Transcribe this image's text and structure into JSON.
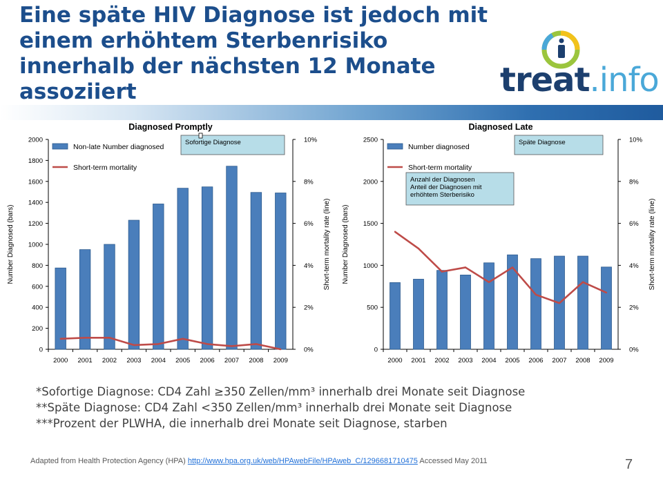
{
  "slide": {
    "title": "Eine späte HIV Diagnose ist jedoch mit einem erhöhtem Sterbenrisiko innerhalb der nächsten 12 Monate assoziiert",
    "logo": {
      "word1": "treat",
      "word2": ".info",
      "icon": "info-i-logo-icon"
    },
    "footnotes": [
      "*Sofortige Diagnose: CD4 Zahl ≥350 Zellen/mm³ innerhalb drei Monate seit Diagnose",
      "**Späte Diagnose: CD4 Zahl <350 Zellen/mm³ innerhalb drei Monate seit Diagnose",
      "***Prozent der PLWHA, die innerhalb drei Monate seit Diagnose, starben"
    ],
    "source_prefix": "Adapted from Health Protection Agency (HPA) ",
    "source_link": "http://www.hpa.org.uk/web/HPAwebFile/HPAweb_C/1296681710475",
    "source_suffix": " Accessed May 2011",
    "page_number": "7"
  },
  "colors": {
    "title": "#1c4e8c",
    "bar": "#4a7ebb",
    "bar_edge": "#2c5a8e",
    "line": "#be4b48",
    "callout_fill": "#b7dde8"
  },
  "chart_data": [
    {
      "type": "bar",
      "title": "Diagnosed Promptly",
      "categories": [
        "2000",
        "2001",
        "2002",
        "2003",
        "2004",
        "2005",
        "2006",
        "2007",
        "2008",
        "2009"
      ],
      "series": [
        {
          "name": "Non-late Number diagnosed",
          "type": "bar",
          "axis": "left",
          "values": [
            775,
            950,
            1000,
            1230,
            1385,
            1535,
            1548,
            1745,
            1495,
            1490
          ]
        },
        {
          "name": "Short-term mortality",
          "type": "line",
          "axis": "right",
          "values": [
            0.5,
            0.55,
            0.55,
            0.2,
            0.25,
            0.5,
            0.25,
            0.15,
            0.25,
            0.0
          ]
        }
      ],
      "ylabel": "Number Diagnosed (bars)",
      "ylabel_right": "Short-term mortality rate (line)",
      "ylim": [
        0,
        2000
      ],
      "yticks": [
        "0",
        "200",
        "400",
        "600",
        "800",
        "1000",
        "1200",
        "1400",
        "1600",
        "1800",
        "2000"
      ],
      "ylim_right": [
        0,
        10
      ],
      "yticks_right": [
        "0%",
        "2%",
        "4%",
        "6%",
        "8%",
        "10%"
      ],
      "grid": false,
      "legend": "top-left",
      "callouts": [
        "Sofortige Diagnose"
      ]
    },
    {
      "type": "bar",
      "title": "Diagnosed Late",
      "categories": [
        "2000",
        "2001",
        "2002",
        "2003",
        "2004",
        "2005",
        "2006",
        "2007",
        "2008",
        "2009"
      ],
      "series": [
        {
          "name": "Number diagnosed",
          "type": "bar",
          "axis": "left",
          "values": [
            795,
            835,
            940,
            885,
            1030,
            1125,
            1080,
            1110,
            1110,
            980
          ]
        },
        {
          "name": "Short-term mortality",
          "type": "line",
          "axis": "right",
          "values": [
            5.6,
            4.8,
            3.7,
            3.9,
            3.2,
            3.9,
            2.6,
            2.2,
            3.2,
            2.7
          ]
        }
      ],
      "ylabel": "Number Diagnosed (bars)",
      "ylabel_right": "Short-term mortality rate (line)",
      "ylim": [
        0,
        2500
      ],
      "yticks": [
        "0",
        "500",
        "1000",
        "1500",
        "2000",
        "2500"
      ],
      "ylim_right": [
        0,
        10
      ],
      "yticks_right": [
        "0%",
        "2%",
        "4%",
        "6%",
        "8%",
        "10%"
      ],
      "grid": false,
      "legend": "top-left",
      "callouts": [
        "Späte Diagnose",
        "Anzahl der  Diagnosen Anteil der Diagnosen mit erhöhtem Sterberisiko"
      ]
    }
  ]
}
